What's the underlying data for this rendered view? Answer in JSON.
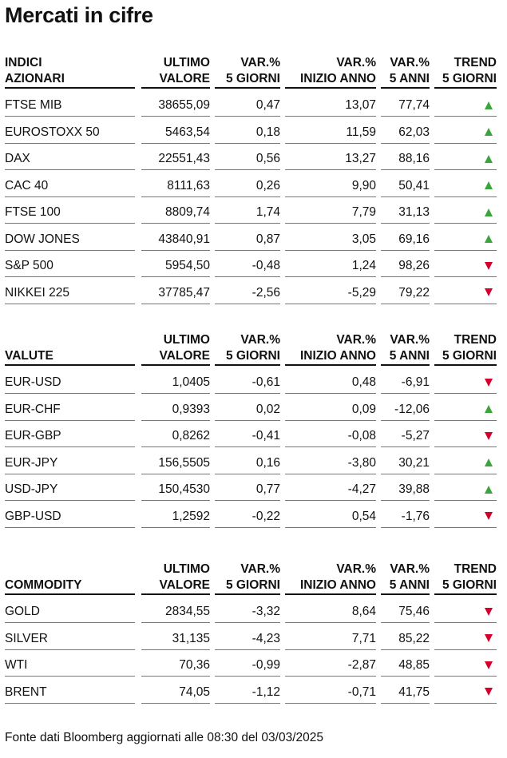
{
  "title": "Mercati in cifre",
  "columns": {
    "ultimo": [
      "ULTIMO",
      "VALORE"
    ],
    "var5": [
      "VAR.%",
      "5 GIORNI"
    ],
    "varAnno": [
      "VAR.%",
      "INIZIO ANNO"
    ],
    "var5anni": [
      "VAR.%",
      "5 ANNI"
    ],
    "trend": [
      "TREND",
      "5 GIORNI"
    ]
  },
  "sections": [
    {
      "label": [
        "INDICI",
        "AZIONARI"
      ],
      "rows": [
        {
          "name": "FTSE MIB",
          "ultimo": "38655,09",
          "var5": "0,47",
          "varAnno": "13,07",
          "var5anni": "77,74",
          "trend": "up"
        },
        {
          "name": "EUROSTOXX 50",
          "ultimo": "5463,54",
          "var5": "0,18",
          "varAnno": "11,59",
          "var5anni": "62,03",
          "trend": "up"
        },
        {
          "name": "DAX",
          "ultimo": "22551,43",
          "var5": "0,56",
          "varAnno": "13,27",
          "var5anni": "88,16",
          "trend": "up"
        },
        {
          "name": "CAC 40",
          "ultimo": "8111,63",
          "var5": "0,26",
          "varAnno": "9,90",
          "var5anni": "50,41",
          "trend": "up"
        },
        {
          "name": "FTSE 100",
          "ultimo": "8809,74",
          "var5": "1,74",
          "varAnno": "7,79",
          "var5anni": "31,13",
          "trend": "up"
        },
        {
          "name": "DOW JONES",
          "ultimo": "43840,91",
          "var5": "0,87",
          "varAnno": "3,05",
          "var5anni": "69,16",
          "trend": "up"
        },
        {
          "name": "S&P 500",
          "ultimo": "5954,50",
          "var5": "-0,48",
          "varAnno": "1,24",
          "var5anni": "98,26",
          "trend": "down"
        },
        {
          "name": "NIKKEI 225",
          "ultimo": "37785,47",
          "var5": "-2,56",
          "varAnno": "-5,29",
          "var5anni": "79,22",
          "trend": "down"
        }
      ]
    },
    {
      "label": [
        "",
        "VALUTE"
      ],
      "rows": [
        {
          "name": "EUR-USD",
          "ultimo": "1,0405",
          "var5": "-0,61",
          "varAnno": "0,48",
          "var5anni": "-6,91",
          "trend": "down"
        },
        {
          "name": "EUR-CHF",
          "ultimo": "0,9393",
          "var5": "0,02",
          "varAnno": "0,09",
          "var5anni": "-12,06",
          "trend": "up"
        },
        {
          "name": "EUR-GBP",
          "ultimo": "0,8262",
          "var5": "-0,41",
          "varAnno": "-0,08",
          "var5anni": "-5,27",
          "trend": "down"
        },
        {
          "name": "EUR-JPY",
          "ultimo": "156,5505",
          "var5": "0,16",
          "varAnno": "-3,80",
          "var5anni": "30,21",
          "trend": "up"
        },
        {
          "name": "USD-JPY",
          "ultimo": "150,4530",
          "var5": "0,77",
          "varAnno": "-4,27",
          "var5anni": "39,88",
          "trend": "up"
        },
        {
          "name": "GBP-USD",
          "ultimo": "1,2592",
          "var5": "-0,22",
          "varAnno": "0,54",
          "var5anni": "-1,76",
          "trend": "down"
        }
      ]
    },
    {
      "label": [
        "",
        "COMMODITY"
      ],
      "rows": [
        {
          "name": "GOLD",
          "ultimo": "2834,55",
          "var5": "-3,32",
          "varAnno": "8,64",
          "var5anni": "75,46",
          "trend": "down"
        },
        {
          "name": "SILVER",
          "ultimo": "31,135",
          "var5": "-4,23",
          "varAnno": "7,71",
          "var5anni": "85,22",
          "trend": "down"
        },
        {
          "name": "WTI",
          "ultimo": "70,36",
          "var5": "-0,99",
          "varAnno": "-2,87",
          "var5anni": "48,85",
          "trend": "down"
        },
        {
          "name": "BRENT",
          "ultimo": "74,05",
          "var5": "-1,12",
          "varAnno": "-0,71",
          "var5anni": "41,75",
          "trend": "down"
        }
      ]
    }
  ],
  "colors": {
    "up": "#3aa53a",
    "down": "#d4002a"
  },
  "footer": "Fonte dati Bloomberg aggiornati alle 08:30 del 03/03/2025"
}
